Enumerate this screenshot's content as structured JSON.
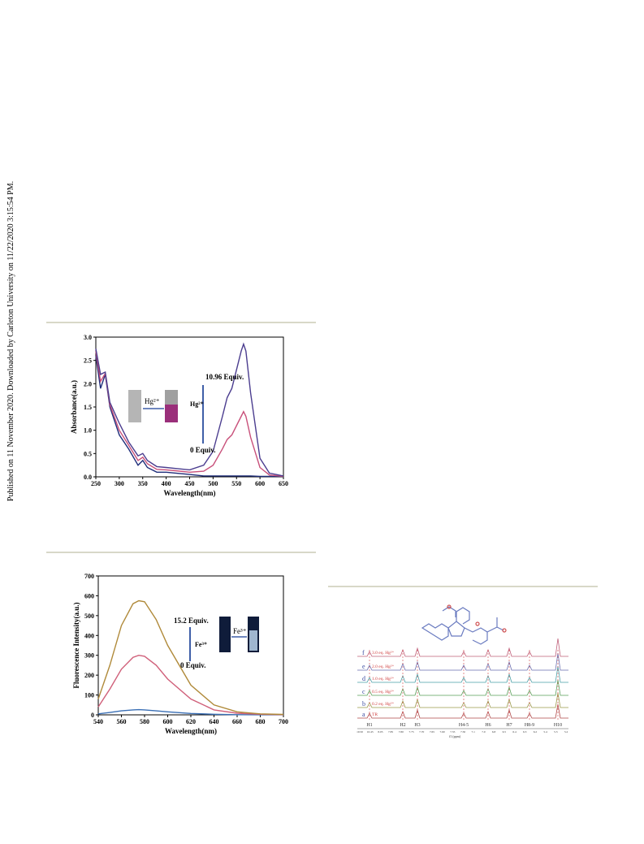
{
  "side_note": "Published on 11 November 2020. Downloaded by Carleton University on 11/22/2020 3:15:54 PM.",
  "chart_data": [
    {
      "type": "line",
      "x_label": "Wavelength(nm)",
      "y_label": "Absorbance(a.u.)",
      "annotations": [
        "10.96 Equiv.",
        "Hg²⁺",
        "0 Equiv.",
        "Hg²⁺"
      ],
      "x": [
        250,
        260,
        270,
        280,
        300,
        320,
        340,
        350,
        360,
        380,
        400,
        420,
        450,
        480,
        500,
        520,
        530,
        540,
        560,
        565,
        570,
        580,
        600,
        620,
        650
      ],
      "series": [
        {
          "color": "#1f2d7a",
          "values": [
            2.6,
            1.9,
            2.2,
            1.5,
            0.9,
            0.6,
            0.25,
            0.35,
            0.2,
            0.1,
            0.1,
            0.08,
            0.05,
            0.02,
            0.02,
            0.02,
            0.02,
            0.02,
            0.02,
            0.02,
            0.02,
            0.02,
            0.01,
            0.01,
            0.01
          ]
        },
        {
          "color": "#c8507a",
          "values": [
            2.7,
            2.05,
            2.22,
            1.55,
            1.0,
            0.68,
            0.35,
            0.42,
            0.28,
            0.16,
            0.15,
            0.13,
            0.1,
            0.12,
            0.25,
            0.6,
            0.8,
            0.9,
            1.3,
            1.4,
            1.3,
            0.85,
            0.2,
            0.04,
            0.01
          ]
        },
        {
          "color": "#4b3d8f",
          "values": [
            2.75,
            2.2,
            2.25,
            1.6,
            1.15,
            0.75,
            0.45,
            0.5,
            0.35,
            0.22,
            0.2,
            0.18,
            0.15,
            0.25,
            0.55,
            1.3,
            1.7,
            1.9,
            2.7,
            2.85,
            2.7,
            1.8,
            0.4,
            0.08,
            0.02
          ]
        }
      ],
      "xlim": [
        250,
        650
      ],
      "xticks": [
        250,
        300,
        350,
        400,
        450,
        500,
        550,
        600,
        650
      ],
      "ylim": [
        0,
        3
      ],
      "yticks": [
        {
          "value": 0,
          "label": "0.0"
        },
        {
          "value": 0.5,
          "label": "0.5"
        },
        {
          "value": 1,
          "label": "1.0"
        },
        {
          "value": 1.5,
          "label": "1.5"
        },
        {
          "value": 2,
          "label": "2.0"
        },
        {
          "value": 2.5,
          "label": "2.5"
        },
        {
          "value": 3,
          "label": "3.0"
        }
      ]
    },
    {
      "type": "line",
      "x_label": "Wavelength(nm)",
      "y_label": "Fluorescence Intensity(a.u.)",
      "annotations": [
        "15.2 Equiv.",
        "Fe³⁺",
        "0 Equiv.",
        "Fe³⁺"
      ],
      "x": [
        540,
        550,
        560,
        570,
        575,
        580,
        590,
        600,
        620,
        640,
        660,
        680,
        700
      ],
      "series": [
        {
          "color": "#3a6fb5",
          "values": [
            5,
            12,
            20,
            25,
            26,
            25,
            20,
            15,
            7,
            3,
            1,
            0.5,
            0.3
          ]
        },
        {
          "color": "#d0607a",
          "values": [
            40,
            130,
            230,
            290,
            300,
            295,
            250,
            180,
            80,
            25,
            8,
            3,
            1
          ]
        },
        {
          "color": "#b08a3a",
          "values": [
            80,
            250,
            450,
            560,
            575,
            570,
            480,
            350,
            150,
            50,
            15,
            5,
            2
          ]
        }
      ],
      "xlim": [
        540,
        700
      ],
      "xticks": [
        540,
        560,
        580,
        600,
        620,
        640,
        660,
        680,
        700
      ],
      "ylim": [
        0,
        700
      ],
      "yticks": [
        0,
        100,
        200,
        300,
        400,
        500,
        600,
        700
      ]
    }
  ],
  "nmr": {
    "traces": [
      "f",
      "e",
      "d",
      "c",
      "b",
      "a"
    ],
    "samples": [
      "3.0 eq. Hg²⁺",
      "2.0 eq. Hg²⁺",
      "1.0 eq. Hg²⁺",
      "0.5 eq. Hg²⁺",
      "0.2 eq. Hg²⁺",
      "TR"
    ],
    "peaks": [
      "H1",
      "H2",
      "H3",
      "H4-5",
      "H6",
      "H7",
      "H8-9",
      "H10"
    ],
    "ticks": [
      "10.50",
      "10.45",
      "8.05",
      "7.85",
      "7.80",
      "7.75",
      "7.70",
      "7.65",
      "7.60",
      "7.55",
      "7.50",
      "7.1",
      "7.0",
      "6.8",
      "6.5",
      "6.4",
      "6.3",
      "6.2",
      "5.4",
      "5.3",
      "5.2"
    ],
    "x_label": "f1 (ppm)"
  }
}
